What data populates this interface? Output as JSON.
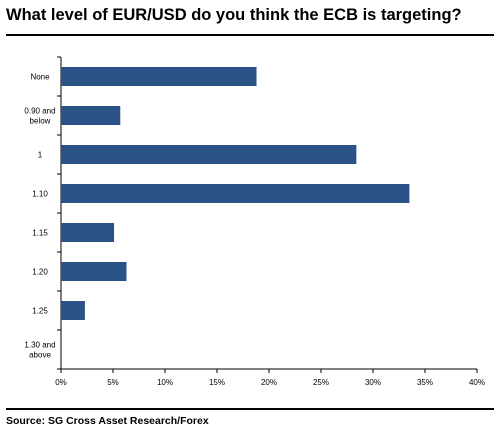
{
  "header": {
    "title": "What level of EUR/USD do you think the ECB is targeting?"
  },
  "footer": {
    "source": "Source: SG Cross Asset Research/Forex"
  },
  "chart_data": {
    "type": "bar",
    "orientation": "horizontal",
    "title": "What level of EUR/USD do you think the ECB is targeting?",
    "categories": [
      "None",
      "0.90 and below",
      "1",
      "1.10",
      "1.15",
      "1.20",
      "1.25",
      "1.30 and above"
    ],
    "category_lines": [
      [
        "None"
      ],
      [
        "0.90 and",
        "below"
      ],
      [
        "1"
      ],
      [
        "1.10"
      ],
      [
        "1.15"
      ],
      [
        "1.20"
      ],
      [
        "1.25"
      ],
      [
        "1.30 and",
        "above"
      ]
    ],
    "values": [
      18.8,
      5.7,
      28.4,
      33.5,
      5.1,
      6.3,
      2.3,
      0
    ],
    "xlim": [
      0,
      40
    ],
    "xticks": [
      0,
      5,
      10,
      15,
      20,
      25,
      30,
      35,
      40
    ],
    "xtick_labels": [
      "0%",
      "5%",
      "10%",
      "15%",
      "20%",
      "25%",
      "30%",
      "35%",
      "40%"
    ],
    "xlabel": "",
    "ylabel": "",
    "grid": false,
    "legend": "none",
    "bar_color": "#2b5286"
  }
}
